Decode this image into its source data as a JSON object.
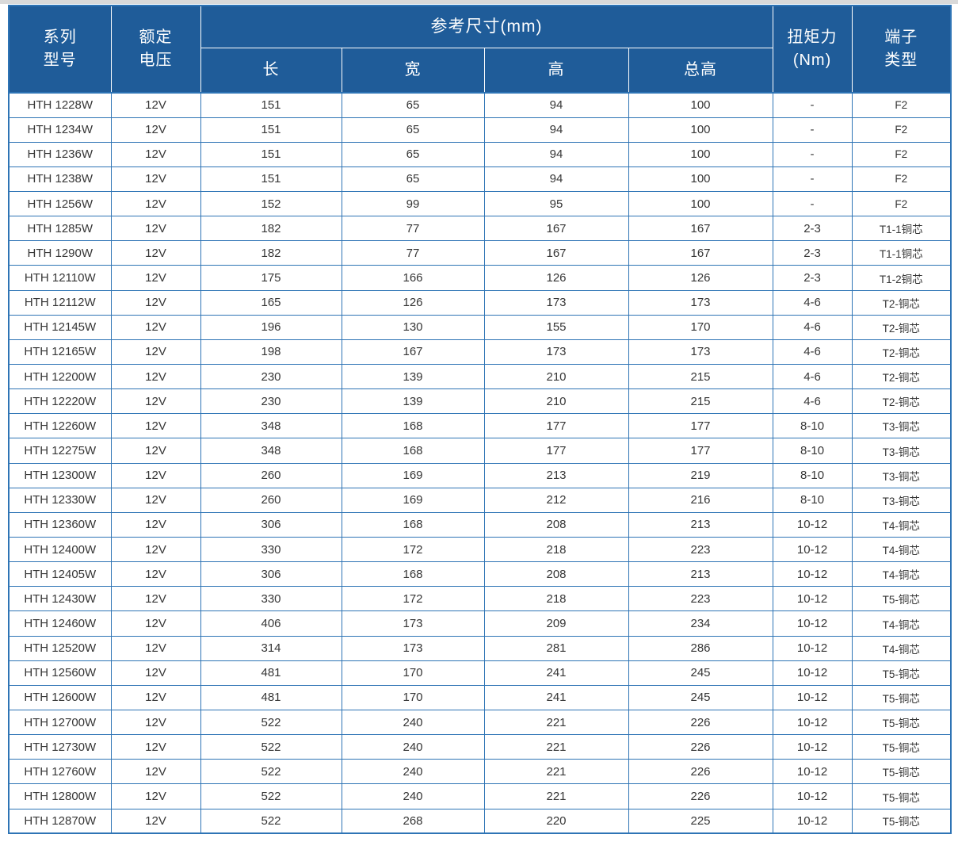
{
  "colors": {
    "header_bg": "#1f5c99",
    "border_blue": "#2e74b5",
    "header_text": "#ffffff",
    "body_text": "#363636",
    "top_bar": "#d9d9d9"
  },
  "table": {
    "header": {
      "col_series": "系列\n型号",
      "col_voltage": "额定\n电压",
      "col_dimensions": "参考尺寸(mm)",
      "col_length": "长",
      "col_width": "宽",
      "col_height": "高",
      "col_total_height": "总高",
      "col_torque": "扭矩力\n(Nm)",
      "col_terminal": "端子\n类型"
    },
    "rows": [
      {
        "model": "HTH 1228W",
        "voltage": "12V",
        "length": "151",
        "width": "65",
        "height": "94",
        "total_height": "100",
        "torque": "-",
        "terminal": "F2"
      },
      {
        "model": "HTH 1234W",
        "voltage": "12V",
        "length": "151",
        "width": "65",
        "height": "94",
        "total_height": "100",
        "torque": "-",
        "terminal": "F2"
      },
      {
        "model": "HTH 1236W",
        "voltage": "12V",
        "length": "151",
        "width": "65",
        "height": "94",
        "total_height": "100",
        "torque": "-",
        "terminal": "F2"
      },
      {
        "model": "HTH 1238W",
        "voltage": "12V",
        "length": "151",
        "width": "65",
        "height": "94",
        "total_height": "100",
        "torque": "-",
        "terminal": "F2"
      },
      {
        "model": "HTH 1256W",
        "voltage": "12V",
        "length": "152",
        "width": "99",
        "height": "95",
        "total_height": "100",
        "torque": "-",
        "terminal": "F2"
      },
      {
        "model": "HTH 1285W",
        "voltage": "12V",
        "length": "182",
        "width": "77",
        "height": "167",
        "total_height": "167",
        "torque": "2-3",
        "terminal": "T1-1铜芯"
      },
      {
        "model": "HTH 1290W",
        "voltage": "12V",
        "length": "182",
        "width": "77",
        "height": "167",
        "total_height": "167",
        "torque": "2-3",
        "terminal": "T1-1铜芯"
      },
      {
        "model": "HTH 12110W",
        "voltage": "12V",
        "length": "175",
        "width": "166",
        "height": "126",
        "total_height": "126",
        "torque": "2-3",
        "terminal": "T1-2铜芯"
      },
      {
        "model": "HTH 12112W",
        "voltage": "12V",
        "length": "165",
        "width": "126",
        "height": "173",
        "total_height": "173",
        "torque": "4-6",
        "terminal": "T2-铜芯"
      },
      {
        "model": "HTH 12145W",
        "voltage": "12V",
        "length": "196",
        "width": "130",
        "height": "155",
        "total_height": "170",
        "torque": "4-6",
        "terminal": "T2-铜芯"
      },
      {
        "model": "HTH 12165W",
        "voltage": "12V",
        "length": "198",
        "width": "167",
        "height": "173",
        "total_height": "173",
        "torque": "4-6",
        "terminal": "T2-铜芯"
      },
      {
        "model": "HTH 12200W",
        "voltage": "12V",
        "length": "230",
        "width": "139",
        "height": "210",
        "total_height": "215",
        "torque": "4-6",
        "terminal": "T2-铜芯"
      },
      {
        "model": "HTH 12220W",
        "voltage": "12V",
        "length": "230",
        "width": "139",
        "height": "210",
        "total_height": "215",
        "torque": "4-6",
        "terminal": "T2-铜芯"
      },
      {
        "model": "HTH 12260W",
        "voltage": "12V",
        "length": "348",
        "width": "168",
        "height": "177",
        "total_height": "177",
        "torque": "8-10",
        "terminal": "T3-铜芯"
      },
      {
        "model": "HTH 12275W",
        "voltage": "12V",
        "length": "348",
        "width": "168",
        "height": "177",
        "total_height": "177",
        "torque": "8-10",
        "terminal": "T3-铜芯"
      },
      {
        "model": "HTH 12300W",
        "voltage": "12V",
        "length": "260",
        "width": "169",
        "height": "213",
        "total_height": "219",
        "torque": "8-10",
        "terminal": "T3-铜芯"
      },
      {
        "model": "HTH 12330W",
        "voltage": "12V",
        "length": "260",
        "width": "169",
        "height": "212",
        "total_height": "216",
        "torque": "8-10",
        "terminal": "T3-铜芯"
      },
      {
        "model": "HTH 12360W",
        "voltage": "12V",
        "length": "306",
        "width": "168",
        "height": "208",
        "total_height": "213",
        "torque": "10-12",
        "terminal": "T4-铜芯"
      },
      {
        "model": "HTH 12400W",
        "voltage": "12V",
        "length": "330",
        "width": "172",
        "height": "218",
        "total_height": "223",
        "torque": "10-12",
        "terminal": "T4-铜芯"
      },
      {
        "model": "HTH 12405W",
        "voltage": "12V",
        "length": "306",
        "width": "168",
        "height": "208",
        "total_height": "213",
        "torque": "10-12",
        "terminal": "T4-铜芯"
      },
      {
        "model": "HTH 12430W",
        "voltage": "12V",
        "length": "330",
        "width": "172",
        "height": "218",
        "total_height": "223",
        "torque": "10-12",
        "terminal": "T5-铜芯"
      },
      {
        "model": "HTH 12460W",
        "voltage": "12V",
        "length": "406",
        "width": "173",
        "height": "209",
        "total_height": "234",
        "torque": "10-12",
        "terminal": "T4-铜芯"
      },
      {
        "model": "HTH 12520W",
        "voltage": "12V",
        "length": "314",
        "width": "173",
        "height": "281",
        "total_height": "286",
        "torque": "10-12",
        "terminal": "T4-铜芯"
      },
      {
        "model": "HTH 12560W",
        "voltage": "12V",
        "length": "481",
        "width": "170",
        "height": "241",
        "total_height": "245",
        "torque": "10-12",
        "terminal": "T5-铜芯"
      },
      {
        "model": "HTH 12600W",
        "voltage": "12V",
        "length": "481",
        "width": "170",
        "height": "241",
        "total_height": "245",
        "torque": "10-12",
        "terminal": "T5-铜芯"
      },
      {
        "model": "HTH 12700W",
        "voltage": "12V",
        "length": "522",
        "width": "240",
        "height": "221",
        "total_height": "226",
        "torque": "10-12",
        "terminal": "T5-铜芯"
      },
      {
        "model": "HTH 12730W",
        "voltage": "12V",
        "length": "522",
        "width": "240",
        "height": "221",
        "total_height": "226",
        "torque": "10-12",
        "terminal": "T5-铜芯"
      },
      {
        "model": "HTH 12760W",
        "voltage": "12V",
        "length": "522",
        "width": "240",
        "height": "221",
        "total_height": "226",
        "torque": "10-12",
        "terminal": "T5-铜芯"
      },
      {
        "model": "HTH 12800W",
        "voltage": "12V",
        "length": "522",
        "width": "240",
        "height": "221",
        "total_height": "226",
        "torque": "10-12",
        "terminal": "T5-铜芯"
      },
      {
        "model": "HTH 12870W",
        "voltage": "12V",
        "length": "522",
        "width": "268",
        "height": "220",
        "total_height": "225",
        "torque": "10-12",
        "terminal": "T5-铜芯"
      }
    ]
  }
}
